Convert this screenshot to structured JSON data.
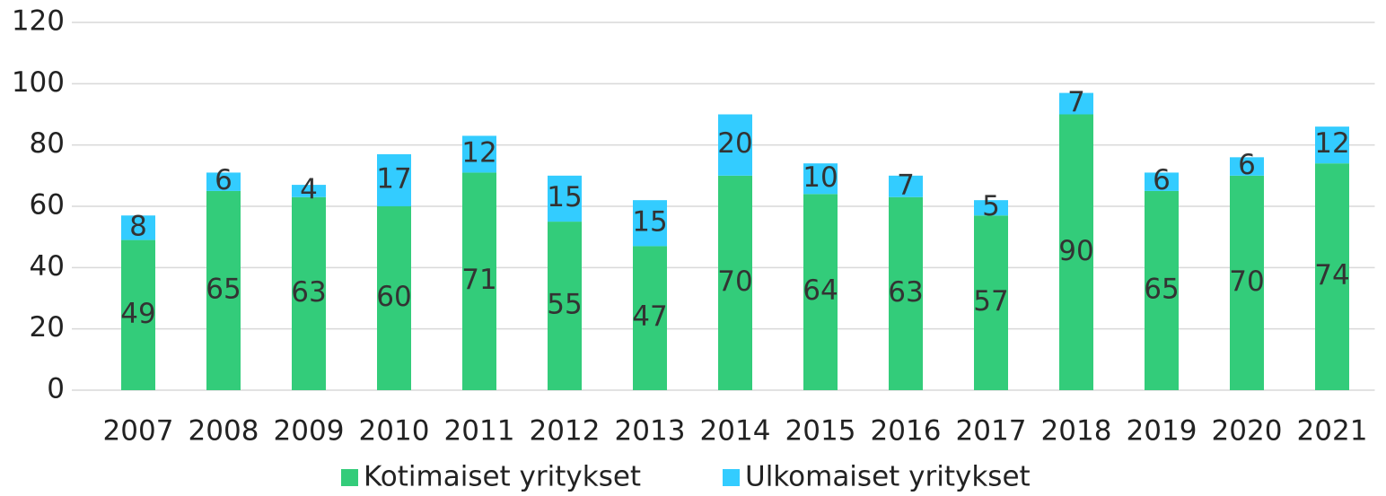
{
  "chart_data": {
    "type": "bar",
    "stacked": true,
    "categories": [
      "2007",
      "2008",
      "2009",
      "2010",
      "2011",
      "2012",
      "2013",
      "2014",
      "2015",
      "2016",
      "2017",
      "2018",
      "2019",
      "2020",
      "2021"
    ],
    "series": [
      {
        "name": "Kotimaiset yritykset",
        "color": "#33cc7a",
        "values": [
          49,
          65,
          63,
          60,
          71,
          55,
          47,
          70,
          64,
          63,
          57,
          90,
          65,
          70,
          74
        ]
      },
      {
        "name": "Ulkomaiset yritykset",
        "color": "#33ccff",
        "values": [
          8,
          6,
          4,
          17,
          12,
          15,
          15,
          20,
          10,
          7,
          5,
          7,
          6,
          6,
          12
        ]
      }
    ],
    "ylim": [
      0,
      120
    ],
    "yticks": [
      0,
      20,
      40,
      60,
      80,
      100,
      120
    ],
    "grid": true,
    "legend": "bottom"
  }
}
